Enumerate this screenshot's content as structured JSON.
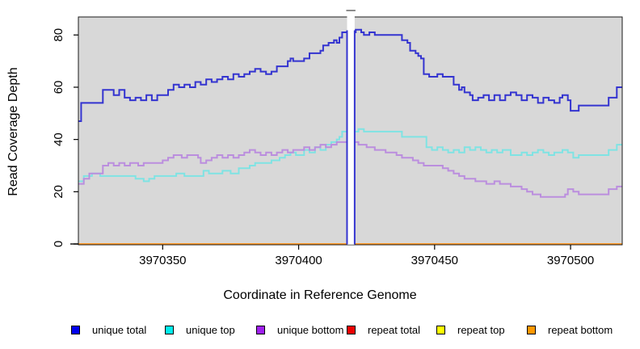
{
  "figure": {
    "background": "#ffffff",
    "plot_background": "#d8d8d8",
    "frame_color": "#1a1a1a"
  },
  "chart_data": {
    "type": "line",
    "subtype": "step",
    "title": "",
    "xlabel": "Coordinate in Reference Genome",
    "ylabel": "Read Coverage Depth",
    "xlim": [
      3970319,
      3970519
    ],
    "ylim": [
      0,
      87
    ],
    "x_ticks": [
      3970350,
      3970400,
      3970450,
      3970500
    ],
    "y_ticks": [
      0,
      20,
      40,
      60,
      80
    ],
    "grid": "off",
    "legend_position": "bottom",
    "highlight_band": {
      "x_start": 3970417.8,
      "x_end": 3970420.6,
      "fill": "#ffffff",
      "edge_color": "#3434d0",
      "edge_top_value": 81.8,
      "cap_color": "#8c8c8c"
    },
    "series": [
      {
        "name": "unique total",
        "line_color": "#3434d0",
        "legend_color": "#0000ee",
        "points": [
          [
            3970319,
            47
          ],
          [
            3970320,
            54
          ],
          [
            3970328,
            59
          ],
          [
            3970332,
            57
          ],
          [
            3970334,
            59
          ],
          [
            3970336,
            56
          ],
          [
            3970338,
            55
          ],
          [
            3970340,
            56
          ],
          [
            3970342,
            55
          ],
          [
            3970344,
            57
          ],
          [
            3970346,
            55
          ],
          [
            3970348,
            57
          ],
          [
            3970350,
            57
          ],
          [
            3970352,
            59
          ],
          [
            3970354,
            61
          ],
          [
            3970356,
            60
          ],
          [
            3970358,
            61
          ],
          [
            3970360,
            60
          ],
          [
            3970362,
            62
          ],
          [
            3970364,
            61
          ],
          [
            3970366,
            63
          ],
          [
            3970368,
            62
          ],
          [
            3970370,
            63
          ],
          [
            3970372,
            64
          ],
          [
            3970374,
            63
          ],
          [
            3970376,
            65
          ],
          [
            3970378,
            64
          ],
          [
            3970380,
            65
          ],
          [
            3970382,
            66
          ],
          [
            3970384,
            67
          ],
          [
            3970386,
            66
          ],
          [
            3970388,
            65
          ],
          [
            3970390,
            66
          ],
          [
            3970392,
            68
          ],
          [
            3970394,
            68
          ],
          [
            3970396,
            70
          ],
          [
            3970397,
            71
          ],
          [
            3970398,
            70
          ],
          [
            3970400,
            70
          ],
          [
            3970402,
            71
          ],
          [
            3970404,
            73
          ],
          [
            3970406,
            73
          ],
          [
            3970408,
            74
          ],
          [
            3970409,
            76
          ],
          [
            3970411,
            77
          ],
          [
            3970413,
            78
          ],
          [
            3970414,
            77
          ],
          [
            3970415,
            79
          ],
          [
            3970416,
            81
          ],
          [
            3970418,
            81
          ],
          [
            3970421,
            82
          ],
          [
            3970423,
            81
          ],
          [
            3970424,
            80
          ],
          [
            3970426,
            81
          ],
          [
            3970428,
            80
          ],
          [
            3970436,
            80
          ],
          [
            3970438,
            78
          ],
          [
            3970440,
            77
          ],
          [
            3970441,
            74
          ],
          [
            3970443,
            73
          ],
          [
            3970444,
            72
          ],
          [
            3970445,
            71
          ],
          [
            3970446,
            65
          ],
          [
            3970448,
            64
          ],
          [
            3970450,
            64
          ],
          [
            3970451,
            65
          ],
          [
            3970453,
            64
          ],
          [
            3970456,
            64
          ],
          [
            3970457,
            61
          ],
          [
            3970459,
            59
          ],
          [
            3970460,
            60
          ],
          [
            3970461,
            58
          ],
          [
            3970463,
            57
          ],
          [
            3970464,
            55
          ],
          [
            3970466,
            56
          ],
          [
            3970468,
            57
          ],
          [
            3970470,
            55
          ],
          [
            3970472,
            57
          ],
          [
            3970474,
            55
          ],
          [
            3970476,
            57
          ],
          [
            3970478,
            58
          ],
          [
            3970480,
            57
          ],
          [
            3970482,
            55
          ],
          [
            3970484,
            57
          ],
          [
            3970486,
            56
          ],
          [
            3970488,
            54
          ],
          [
            3970490,
            56
          ],
          [
            3970492,
            55
          ],
          [
            3970494,
            54
          ],
          [
            3970496,
            56
          ],
          [
            3970497,
            57
          ],
          [
            3970499,
            55
          ],
          [
            3970500,
            51
          ],
          [
            3970502,
            51
          ],
          [
            3970503,
            53
          ],
          [
            3970513,
            53
          ],
          [
            3970514,
            56
          ],
          [
            3970516,
            56
          ],
          [
            3970517,
            60
          ],
          [
            3970519,
            60
          ]
        ]
      },
      {
        "name": "unique top",
        "line_color": "#7fe3e3",
        "legend_color": "#00eeee",
        "points": [
          [
            3970319,
            24
          ],
          [
            3970321,
            26
          ],
          [
            3970324,
            27
          ],
          [
            3970327,
            26
          ],
          [
            3970340,
            25
          ],
          [
            3970343,
            24
          ],
          [
            3970345,
            25
          ],
          [
            3970347,
            26
          ],
          [
            3970355,
            27
          ],
          [
            3970358,
            26
          ],
          [
            3970365,
            28
          ],
          [
            3970367,
            27
          ],
          [
            3970372,
            28
          ],
          [
            3970375,
            27
          ],
          [
            3970378,
            29
          ],
          [
            3970382,
            30
          ],
          [
            3970384,
            31
          ],
          [
            3970388,
            31
          ],
          [
            3970390,
            32
          ],
          [
            3970393,
            33
          ],
          [
            3970395,
            34
          ],
          [
            3970397,
            35
          ],
          [
            3970399,
            34
          ],
          [
            3970402,
            36
          ],
          [
            3970404,
            35
          ],
          [
            3970406,
            37
          ],
          [
            3970408,
            36
          ],
          [
            3970410,
            38
          ],
          [
            3970412,
            39
          ],
          [
            3970414,
            40
          ],
          [
            3970415,
            41
          ],
          [
            3970416,
            43
          ],
          [
            3970421,
            43
          ],
          [
            3970422,
            44
          ],
          [
            3970424,
            43
          ],
          [
            3970438,
            41
          ],
          [
            3970446,
            41
          ],
          [
            3970447,
            37
          ],
          [
            3970449,
            36
          ],
          [
            3970451,
            37
          ],
          [
            3970453,
            36
          ],
          [
            3970455,
            35
          ],
          [
            3970457,
            36
          ],
          [
            3970459,
            35
          ],
          [
            3970461,
            37
          ],
          [
            3970463,
            36
          ],
          [
            3970465,
            37
          ],
          [
            3970467,
            36
          ],
          [
            3970469,
            35
          ],
          [
            3970471,
            36
          ],
          [
            3970473,
            35
          ],
          [
            3970475,
            36
          ],
          [
            3970478,
            34
          ],
          [
            3970482,
            35
          ],
          [
            3970484,
            34
          ],
          [
            3970486,
            35
          ],
          [
            3970488,
            36
          ],
          [
            3970490,
            35
          ],
          [
            3970492,
            34
          ],
          [
            3970494,
            35
          ],
          [
            3970497,
            36
          ],
          [
            3970499,
            35
          ],
          [
            3970501,
            33
          ],
          [
            3970503,
            34
          ],
          [
            3970513,
            34
          ],
          [
            3970514,
            36
          ],
          [
            3970516,
            36
          ],
          [
            3970517,
            38
          ],
          [
            3970519,
            38
          ]
        ]
      },
      {
        "name": "unique bottom",
        "line_color": "#bb8ede",
        "legend_color": "#a020f0",
        "points": [
          [
            3970319,
            23
          ],
          [
            3970321,
            25
          ],
          [
            3970323,
            27
          ],
          [
            3970328,
            30
          ],
          [
            3970330,
            31
          ],
          [
            3970332,
            30
          ],
          [
            3970334,
            31
          ],
          [
            3970336,
            30
          ],
          [
            3970338,
            31
          ],
          [
            3970341,
            30
          ],
          [
            3970343,
            31
          ],
          [
            3970347,
            31
          ],
          [
            3970350,
            32
          ],
          [
            3970352,
            33
          ],
          [
            3970354,
            34
          ],
          [
            3970357,
            33
          ],
          [
            3970359,
            34
          ],
          [
            3970363,
            33
          ],
          [
            3970364,
            31
          ],
          [
            3970366,
            32
          ],
          [
            3970368,
            33
          ],
          [
            3970370,
            34
          ],
          [
            3970372,
            33
          ],
          [
            3970374,
            34
          ],
          [
            3970376,
            33
          ],
          [
            3970378,
            34
          ],
          [
            3970380,
            35
          ],
          [
            3970382,
            36
          ],
          [
            3970384,
            35
          ],
          [
            3970386,
            34
          ],
          [
            3970388,
            35
          ],
          [
            3970390,
            34
          ],
          [
            3970392,
            35
          ],
          [
            3970394,
            36
          ],
          [
            3970396,
            35
          ],
          [
            3970398,
            36
          ],
          [
            3970400,
            36
          ],
          [
            3970402,
            37
          ],
          [
            3970404,
            36
          ],
          [
            3970406,
            37
          ],
          [
            3970408,
            38
          ],
          [
            3970410,
            37
          ],
          [
            3970412,
            38
          ],
          [
            3970414,
            39
          ],
          [
            3970416,
            39
          ],
          [
            3970421,
            39
          ],
          [
            3970422,
            38
          ],
          [
            3970425,
            37
          ],
          [
            3970428,
            36
          ],
          [
            3970430,
            36
          ],
          [
            3970432,
            35
          ],
          [
            3970434,
            35
          ],
          [
            3970436,
            34
          ],
          [
            3970438,
            33
          ],
          [
            3970440,
            33
          ],
          [
            3970442,
            32
          ],
          [
            3970444,
            31
          ],
          [
            3970446,
            30
          ],
          [
            3970450,
            30
          ],
          [
            3970453,
            29
          ],
          [
            3970455,
            28
          ],
          [
            3970457,
            27
          ],
          [
            3970459,
            26
          ],
          [
            3970461,
            25
          ],
          [
            3970463,
            25
          ],
          [
            3970465,
            24
          ],
          [
            3970467,
            24
          ],
          [
            3970469,
            23
          ],
          [
            3970471,
            23
          ],
          [
            3970472,
            24
          ],
          [
            3970474,
            23
          ],
          [
            3970476,
            23
          ],
          [
            3970478,
            22
          ],
          [
            3970481,
            22
          ],
          [
            3970482,
            21
          ],
          [
            3970484,
            20
          ],
          [
            3970486,
            19
          ],
          [
            3970489,
            18
          ],
          [
            3970495,
            18
          ],
          [
            3970498,
            19
          ],
          [
            3970499,
            21
          ],
          [
            3970501,
            20
          ],
          [
            3970503,
            19
          ],
          [
            3970513,
            19
          ],
          [
            3970514,
            21
          ],
          [
            3970516,
            21
          ],
          [
            3970517,
            22
          ],
          [
            3970519,
            22
          ]
        ]
      },
      {
        "name": "repeat total",
        "line_color": "#e03030",
        "legend_color": "#ee0000",
        "points": [
          [
            3970319,
            0
          ],
          [
            3970519,
            0
          ]
        ]
      },
      {
        "name": "repeat top",
        "line_color": "#f2ec60",
        "legend_color": "#ffff00",
        "points": [
          [
            3970319,
            0
          ],
          [
            3970519,
            0
          ]
        ]
      },
      {
        "name": "repeat bottom",
        "line_color": "#ff9c2b",
        "legend_color": "#ff9800",
        "points": [
          [
            3970319,
            0
          ],
          [
            3970519,
            0
          ]
        ]
      }
    ]
  },
  "legend_lefts": [
    88,
    204,
    317,
    429,
    540,
    652
  ]
}
